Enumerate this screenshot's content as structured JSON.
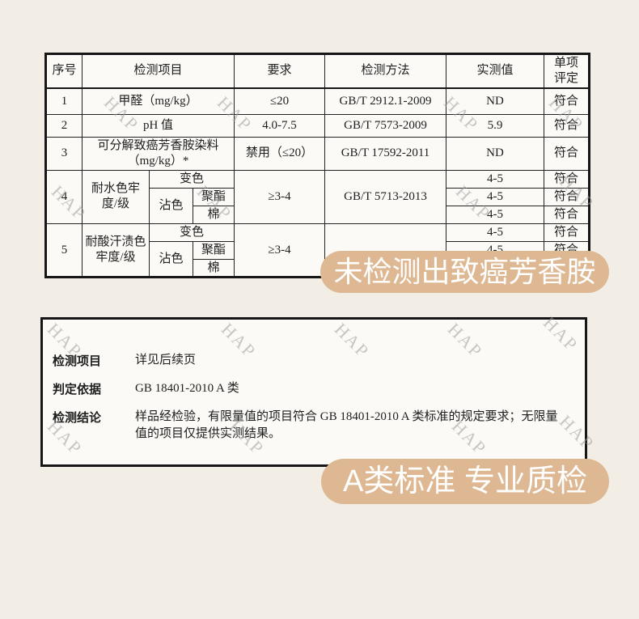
{
  "colors": {
    "accent": "#deb892",
    "page_bg": "#f2eee6",
    "box_bg": "#fbfaf6",
    "border": "#161616"
  },
  "watermark": {
    "text": "HAP"
  },
  "report_table": {
    "headers": [
      "序号",
      "检测项目",
      "要求",
      "检测方法",
      "实测值",
      "单项\n评定"
    ],
    "rows": [
      [
        "1",
        "甲醛（mg/kg）",
        "≤20",
        "GB/T 2912.1-2009",
        "ND",
        "符合"
      ],
      [
        "2",
        "pH 值",
        "4.0-7.5",
        "GB/T 7573-2009",
        "5.9",
        "符合"
      ],
      [
        "3",
        "可分解致癌芳香胺染料（mg/kg）*",
        "禁用（≤20）",
        "GB/T 17592-2011",
        "ND",
        "符合"
      ],
      [
        "4",
        "耐水色牢度/级",
        "变色",
        "≥3-4",
        "GB/T 5713-2013",
        "4-5",
        "符合"
      ],
      [
        "沾色",
        "聚酯",
        "4-5",
        "符合"
      ],
      [
        "棉",
        "4-5",
        "符合"
      ],
      [
        "5",
        "耐酸汗渍色牢度/级",
        "变色",
        "≥3-4",
        "",
        "4-5",
        "符合"
      ],
      [
        "沾色",
        "聚酯",
        "4-5",
        "符合"
      ],
      [
        "棉",
        "4-5",
        "符合"
      ]
    ]
  },
  "summary": {
    "rows": [
      {
        "label": "检测项目",
        "value": "详见后续页"
      },
      {
        "label": "判定依据",
        "value": "GB 18401-2010 A 类"
      },
      {
        "label": "检测结论",
        "value": "样品经检验，有限量值的项目符合 GB 18401-2010 A 类标准的规定要求；无限量值的项目仅提供实测结果。"
      }
    ]
  },
  "banners": {
    "no_amines": "未检测出致癌芳香胺",
    "class_a": "A类标准 专业质检"
  }
}
